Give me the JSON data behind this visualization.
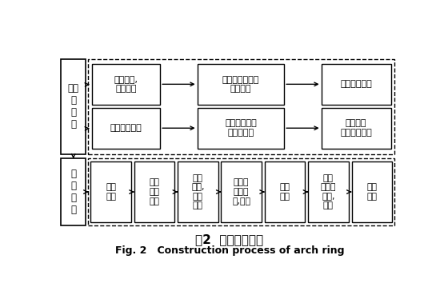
{
  "title_zh": "图2  拱圈施工工艺",
  "title_en": "Fig. 2   Construction process of arch ring",
  "bg_color": "#ffffff",
  "box_facecolor": "#ffffff",
  "box_edgecolor": "#000000",
  "arrow_color": "#000000",
  "text_color": "#000000",
  "left_label_top": "施工\n前\n准\n备",
  "left_label_bot": "拱\n圈\n施\n工",
  "row1_boxes": [
    "测量放样,\n平整场地",
    "地基承载力检测\n地基处理",
    "拱架基础施工"
  ],
  "row2_boxes": [
    "支架方案确定",
    "支架材料置备\n运输至现场",
    "钢管支架\n现场防锈处理"
  ],
  "row3_boxes": [
    "拱架\n搭设",
    "圈拱\n底板\n施工",
    "支架\n预压,\n观测\n分析",
    "调整底\n模板标\n高,立模",
    "绑扎\n钢筋",
    "拱圈\n混凝土\n施工,\n养护",
    "卸落\n拱架"
  ]
}
